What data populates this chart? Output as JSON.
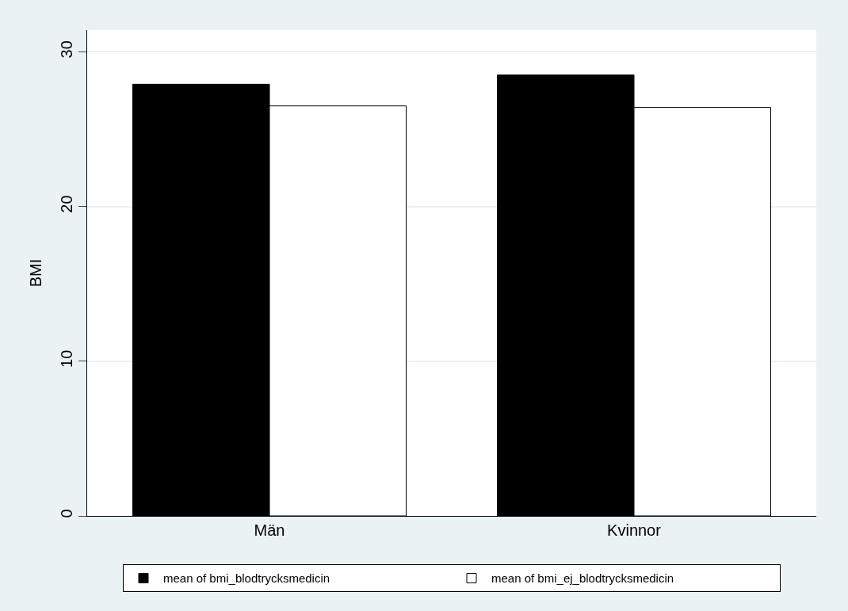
{
  "chart_data": {
    "type": "bar",
    "ylabel": "BMI",
    "categories": [
      "Män",
      "Kvinnor"
    ],
    "series": [
      {
        "name": "mean of bmi_blodtrycksmedicin",
        "color": "#000000",
        "values": [
          27.9,
          28.5
        ]
      },
      {
        "name": "mean of bmi_ej_blodtrycksmedicin",
        "color": "#ffffff",
        "values": [
          26.5,
          26.4
        ]
      }
    ],
    "ylim": [
      0,
      31.4
    ],
    "yticks": [
      0,
      10,
      20,
      30
    ],
    "grid": "y",
    "legend": "bottom"
  }
}
